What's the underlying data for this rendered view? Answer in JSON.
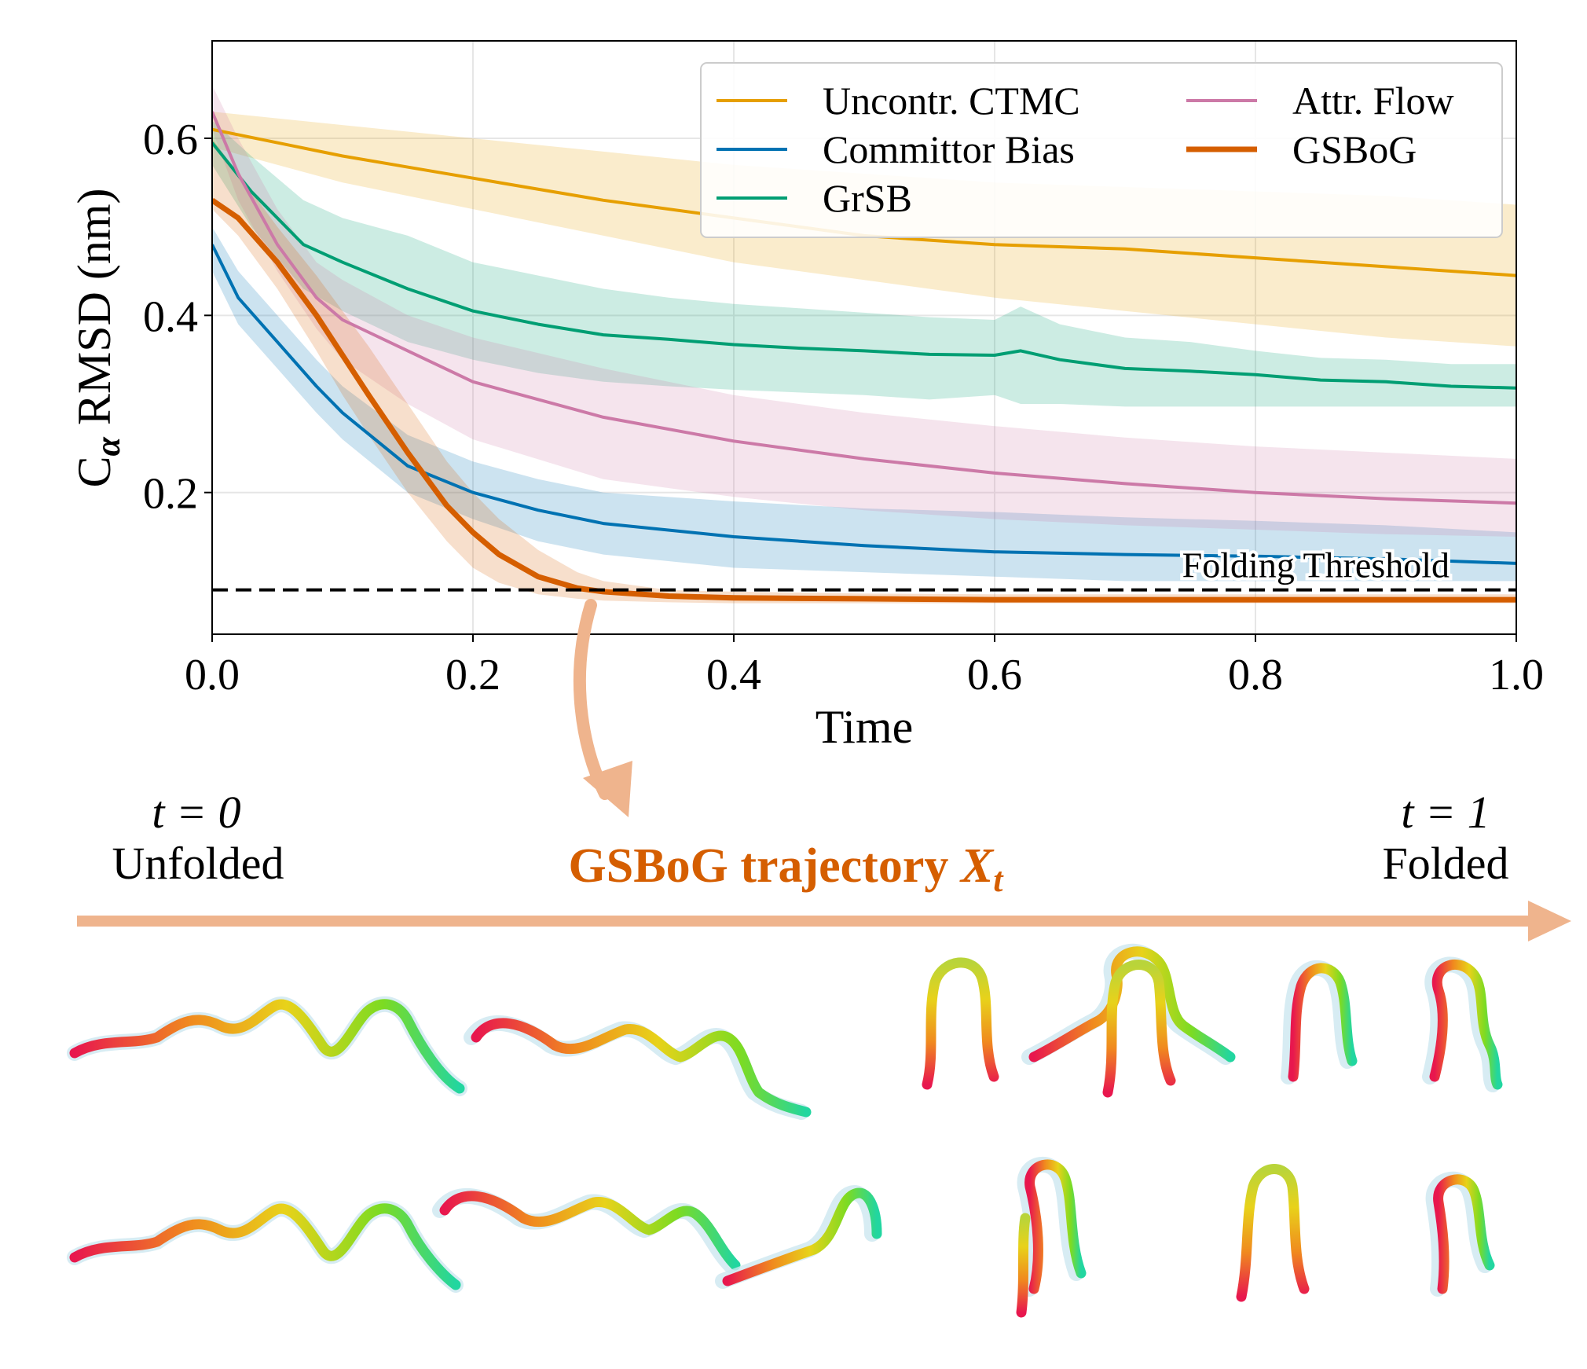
{
  "chart_data": {
    "type": "line",
    "title": "",
    "xlabel": "Time",
    "ylabel_main": "C",
    "ylabel_sub": "α",
    "ylabel_rest": " RMSD (nm)",
    "xlim": [
      0.0,
      1.0
    ],
    "ylim": [
      0.04,
      0.71
    ],
    "xticks": [
      0.0,
      0.2,
      0.4,
      0.6,
      0.8,
      1.0
    ],
    "xtick_labels": [
      "0.0",
      "0.2",
      "0.4",
      "0.6",
      "0.8",
      "1.0"
    ],
    "yticks": [
      0.2,
      0.4,
      0.6
    ],
    "ytick_labels": [
      "0.2",
      "0.4",
      "0.6"
    ],
    "grid": true,
    "legend_position": "top-right",
    "threshold": {
      "label": "Folding Threshold",
      "value": 0.09
    },
    "series": [
      {
        "name": "Uncontr. CTMC",
        "color": "#E69F00",
        "width": 4,
        "x": [
          0.0,
          0.1,
          0.2,
          0.3,
          0.4,
          0.5,
          0.6,
          0.7,
          0.8,
          0.9,
          1.0
        ],
        "y": [
          0.61,
          0.58,
          0.555,
          0.53,
          0.51,
          0.49,
          0.48,
          0.475,
          0.465,
          0.455,
          0.445
        ],
        "lower": [
          0.59,
          0.55,
          0.52,
          0.49,
          0.46,
          0.44,
          0.42,
          0.405,
          0.39,
          0.375,
          0.365
        ],
        "upper": [
          0.63,
          0.615,
          0.6,
          0.585,
          0.57,
          0.56,
          0.55,
          0.545,
          0.54,
          0.535,
          0.525
        ]
      },
      {
        "name": "Committor Bias",
        "color": "#0072B2",
        "width": 4,
        "x": [
          0.0,
          0.02,
          0.05,
          0.08,
          0.1,
          0.15,
          0.2,
          0.25,
          0.3,
          0.4,
          0.5,
          0.6,
          0.7,
          0.8,
          0.9,
          1.0
        ],
        "y": [
          0.48,
          0.42,
          0.37,
          0.32,
          0.29,
          0.23,
          0.2,
          0.18,
          0.165,
          0.15,
          0.14,
          0.133,
          0.13,
          0.128,
          0.125,
          0.12
        ],
        "lower": [
          0.45,
          0.39,
          0.34,
          0.29,
          0.26,
          0.2,
          0.17,
          0.145,
          0.13,
          0.115,
          0.11,
          0.105,
          0.1,
          0.1,
          0.1,
          0.1
        ],
        "upper": [
          0.5,
          0.45,
          0.4,
          0.35,
          0.32,
          0.265,
          0.235,
          0.215,
          0.2,
          0.19,
          0.182,
          0.178,
          0.172,
          0.168,
          0.163,
          0.155
        ]
      },
      {
        "name": "GrSB",
        "color": "#009E73",
        "width": 4,
        "x": [
          0.0,
          0.03,
          0.07,
          0.1,
          0.15,
          0.2,
          0.25,
          0.3,
          0.35,
          0.4,
          0.45,
          0.5,
          0.55,
          0.6,
          0.62,
          0.65,
          0.7,
          0.75,
          0.8,
          0.85,
          0.9,
          0.95,
          1.0
        ],
        "y": [
          0.595,
          0.54,
          0.48,
          0.46,
          0.43,
          0.405,
          0.39,
          0.378,
          0.373,
          0.367,
          0.363,
          0.36,
          0.356,
          0.355,
          0.36,
          0.35,
          0.34,
          0.337,
          0.333,
          0.327,
          0.325,
          0.32,
          0.318
        ],
        "lower": [
          0.57,
          0.5,
          0.43,
          0.405,
          0.37,
          0.35,
          0.335,
          0.325,
          0.32,
          0.316,
          0.313,
          0.31,
          0.305,
          0.31,
          0.3,
          0.3,
          0.297,
          0.297,
          0.297,
          0.297,
          0.297,
          0.297,
          0.297
        ],
        "upper": [
          0.62,
          0.58,
          0.53,
          0.51,
          0.49,
          0.46,
          0.445,
          0.43,
          0.42,
          0.413,
          0.408,
          0.403,
          0.398,
          0.395,
          0.41,
          0.39,
          0.375,
          0.37,
          0.36,
          0.352,
          0.35,
          0.345,
          0.345
        ]
      },
      {
        "name": "Attr. Flow",
        "color": "#CC79A7",
        "width": 4,
        "x": [
          0.0,
          0.02,
          0.05,
          0.08,
          0.1,
          0.15,
          0.2,
          0.3,
          0.4,
          0.5,
          0.6,
          0.7,
          0.8,
          0.9,
          1.0
        ],
        "y": [
          0.63,
          0.56,
          0.48,
          0.42,
          0.395,
          0.36,
          0.325,
          0.285,
          0.258,
          0.238,
          0.222,
          0.21,
          0.2,
          0.193,
          0.188
        ],
        "lower": [
          0.61,
          0.53,
          0.45,
          0.385,
          0.35,
          0.3,
          0.26,
          0.215,
          0.195,
          0.18,
          0.17,
          0.163,
          0.158,
          0.153,
          0.15
        ],
        "upper": [
          0.66,
          0.6,
          0.52,
          0.46,
          0.44,
          0.4,
          0.375,
          0.34,
          0.31,
          0.29,
          0.275,
          0.262,
          0.252,
          0.245,
          0.238
        ]
      },
      {
        "name": "GSBoG",
        "color": "#D55E00",
        "width": 7,
        "x": [
          0.0,
          0.02,
          0.05,
          0.08,
          0.1,
          0.12,
          0.15,
          0.18,
          0.2,
          0.22,
          0.25,
          0.28,
          0.3,
          0.35,
          0.4,
          0.5,
          0.6,
          0.7,
          0.8,
          0.9,
          1.0
        ],
        "y": [
          0.53,
          0.51,
          0.46,
          0.4,
          0.355,
          0.31,
          0.245,
          0.185,
          0.155,
          0.13,
          0.105,
          0.092,
          0.088,
          0.083,
          0.081,
          0.08,
          0.079,
          0.079,
          0.079,
          0.079,
          0.079
        ],
        "lower": [
          0.52,
          0.49,
          0.43,
          0.36,
          0.31,
          0.265,
          0.2,
          0.145,
          0.115,
          0.098,
          0.085,
          0.08,
          0.078,
          0.076,
          0.075,
          0.075,
          0.075,
          0.075,
          0.075,
          0.075,
          0.075
        ],
        "upper": [
          0.6,
          0.56,
          0.5,
          0.445,
          0.405,
          0.365,
          0.3,
          0.235,
          0.2,
          0.17,
          0.135,
          0.11,
          0.1,
          0.09,
          0.088,
          0.086,
          0.085,
          0.085,
          0.085,
          0.085,
          0.085
        ]
      }
    ]
  },
  "annotation": {
    "start_time": "t = 0",
    "start_label": "Unfolded",
    "end_time": "t = 1",
    "end_label": "Folded",
    "trajectory_label": "GSBoG trajectory",
    "trajectory_symbol": "X",
    "trajectory_subscript": "t"
  },
  "colors": {
    "arrow": "#EFB48D",
    "protein_ribbon": "#CDE7F0",
    "threshold": "#000000"
  }
}
